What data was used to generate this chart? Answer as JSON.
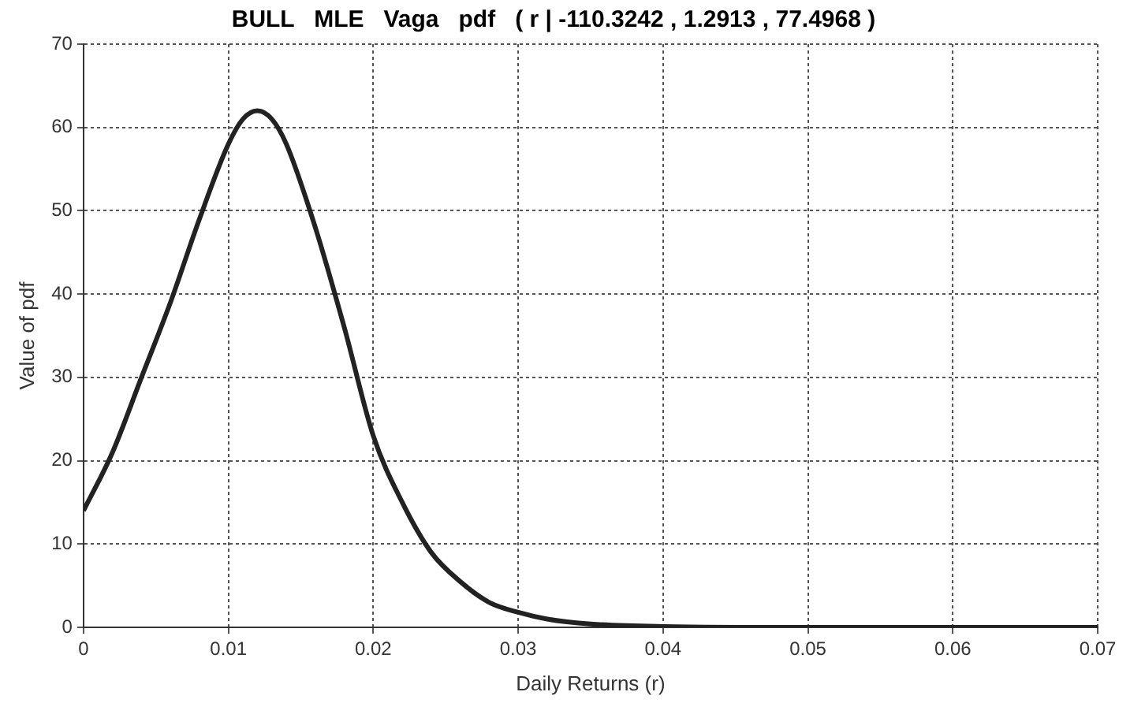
{
  "chart_data": {
    "type": "line",
    "title": "BULL   MLE   Vaga   pdf   ( r | -110.3242 , 1.2913 , 77.4968 )",
    "xlabel": "Daily Returns (r)",
    "ylabel": "Value of pdf",
    "x": [
      0,
      0.002,
      0.004,
      0.006,
      0.008,
      0.01,
      0.011,
      0.012,
      0.013,
      0.014,
      0.016,
      0.018,
      0.02,
      0.022,
      0.024,
      0.026,
      0.028,
      0.03,
      0.032,
      0.035,
      0.04,
      0.05,
      0.06,
      0.07
    ],
    "series": [
      {
        "color": "#222222",
        "values": [
          14,
          21,
          30,
          39,
          49,
          58,
          61,
          62,
          61,
          58,
          48,
          36,
          23,
          15,
          9,
          5.5,
          3,
          1.8,
          1,
          0.4,
          0.1,
          0,
          0,
          0
        ]
      }
    ],
    "xlim": [
      0,
      0.07
    ],
    "xticks": [
      0,
      0.01,
      0.02,
      0.03,
      0.04,
      0.05,
      0.06,
      0.07
    ],
    "ylim": [
      0,
      70
    ],
    "yticks": [
      0,
      10,
      20,
      30,
      40,
      50,
      60,
      70
    ],
    "grid": true,
    "marker": "none",
    "line_style": "solid",
    "legend": false
  }
}
